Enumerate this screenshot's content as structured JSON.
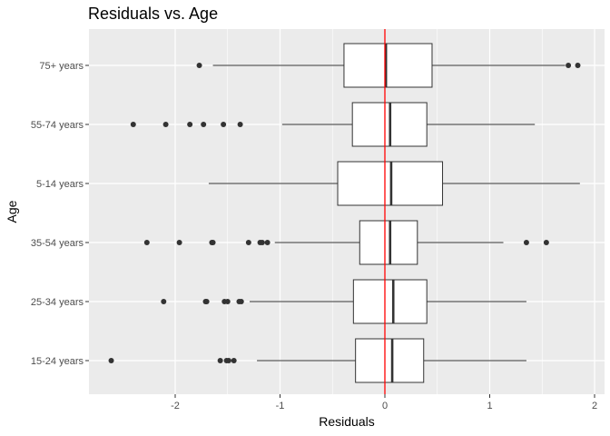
{
  "chart_data": {
    "type": "boxplot",
    "orientation": "horizontal",
    "title": "Residuals vs. Age",
    "xlabel": "Residuals",
    "ylabel": "Age",
    "xlim": [
      -2.8,
      2.1
    ],
    "xticks": [
      -2,
      -1,
      0,
      1,
      2
    ],
    "xtick_labels": [
      "-2",
      "-1",
      "0",
      "1",
      "2"
    ],
    "grid": true,
    "reference_line": {
      "x": 0,
      "color": "#ff0000"
    },
    "colors": {
      "panel": "#ebebeb",
      "grid": "#ffffff",
      "box_fill": "#ffffff",
      "box_stroke": "#333333",
      "outlier": "#333333",
      "tick_label": "#4d4d4d"
    },
    "categories": [
      "75+ years",
      "55-74 years",
      "5-14 years",
      "35-54 years",
      "25-34 years",
      "15-24 years"
    ],
    "boxes": [
      {
        "label": "75+ years",
        "lower_whisker": -1.64,
        "q1": -0.39,
        "median": 0.01,
        "q3": 0.45,
        "upper_whisker": 1.72,
        "outliers": [
          -1.77,
          1.75,
          1.84
        ]
      },
      {
        "label": "55-74 years",
        "lower_whisker": -0.98,
        "q1": -0.31,
        "median": 0.05,
        "q3": 0.4,
        "upper_whisker": 1.43,
        "outliers": [
          -2.4,
          -2.09,
          -1.86,
          -1.73,
          -1.54,
          -1.38
        ]
      },
      {
        "label": "5-14 years",
        "lower_whisker": -1.68,
        "q1": -0.45,
        "median": 0.06,
        "q3": 0.55,
        "upper_whisker": 1.86,
        "outliers": []
      },
      {
        "label": "35-54 years",
        "lower_whisker": -1.05,
        "q1": -0.24,
        "median": 0.05,
        "q3": 0.31,
        "upper_whisker": 1.13,
        "outliers": [
          -2.27,
          -1.96,
          -1.65,
          -1.64,
          -1.3,
          -1.19,
          -1.17,
          -1.12,
          1.35,
          1.54
        ]
      },
      {
        "label": "25-34 years",
        "lower_whisker": -1.29,
        "q1": -0.3,
        "median": 0.08,
        "q3": 0.4,
        "upper_whisker": 1.35,
        "outliers": [
          -2.11,
          -1.71,
          -1.7,
          -1.53,
          -1.5,
          -1.39,
          -1.37
        ]
      },
      {
        "label": "15-24 years",
        "lower_whisker": -1.22,
        "q1": -0.28,
        "median": 0.07,
        "q3": 0.37,
        "upper_whisker": 1.35,
        "outliers": [
          -2.61,
          -1.57,
          -1.51,
          -1.49,
          -1.44
        ]
      }
    ]
  }
}
